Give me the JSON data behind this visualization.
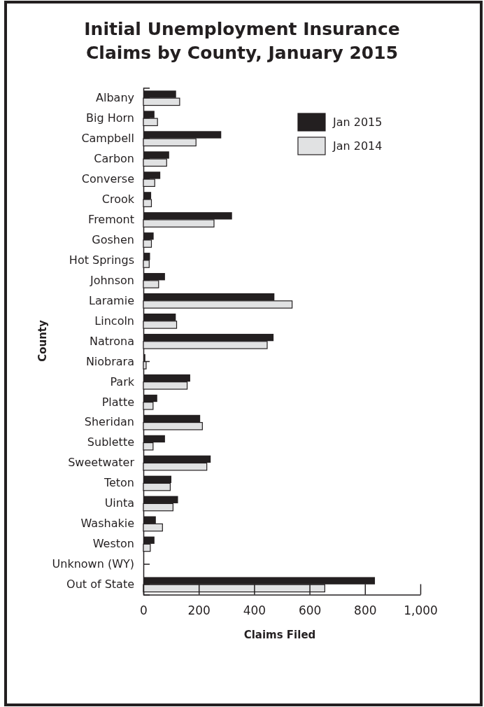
{
  "chart_data": {
    "type": "bar",
    "orientation": "horizontal",
    "title": "Initial Unemployment Insurance Claims by County, January 2015",
    "xlabel": "Claims Filed",
    "ylabel": "County",
    "categories": [
      "Albany",
      "Big Horn",
      "Campbell",
      "Carbon",
      "Converse",
      "Crook",
      "Fremont",
      "Goshen",
      "Hot Springs",
      "Johnson",
      "Laramie",
      "Lincoln",
      "Natrona",
      "Niobrara",
      "Park",
      "Platte",
      "Sheridan",
      "Sublette",
      "Sweetwater",
      "Teton",
      "Uinta",
      "Washakie",
      "Weston",
      "Unknown (WY)",
      "Out of State"
    ],
    "series": [
      {
        "name": "Jan 2015",
        "color": "#231f20",
        "values": [
          118,
          40,
          281,
          93,
          61,
          28,
          320,
          37,
          24,
          78,
          473,
          117,
          470,
          7,
          169,
          50,
          205,
          78,
          243,
          101,
          125,
          45,
          40,
          0,
          836
        ]
      },
      {
        "name": "Jan 2014",
        "color": "#e1e2e3",
        "values": [
          131,
          51,
          190,
          84,
          41,
          29,
          255,
          29,
          21,
          55,
          537,
          120,
          447,
          10,
          158,
          35,
          213,
          35,
          229,
          97,
          107,
          69,
          25,
          0,
          655
        ]
      }
    ],
    "xlim": [
      0,
      1000
    ],
    "xticks": [
      0,
      200,
      400,
      600,
      800,
      {
        "value": 1000,
        "label": "1,000"
      }
    ],
    "legend": "top right",
    "grid": false
  }
}
